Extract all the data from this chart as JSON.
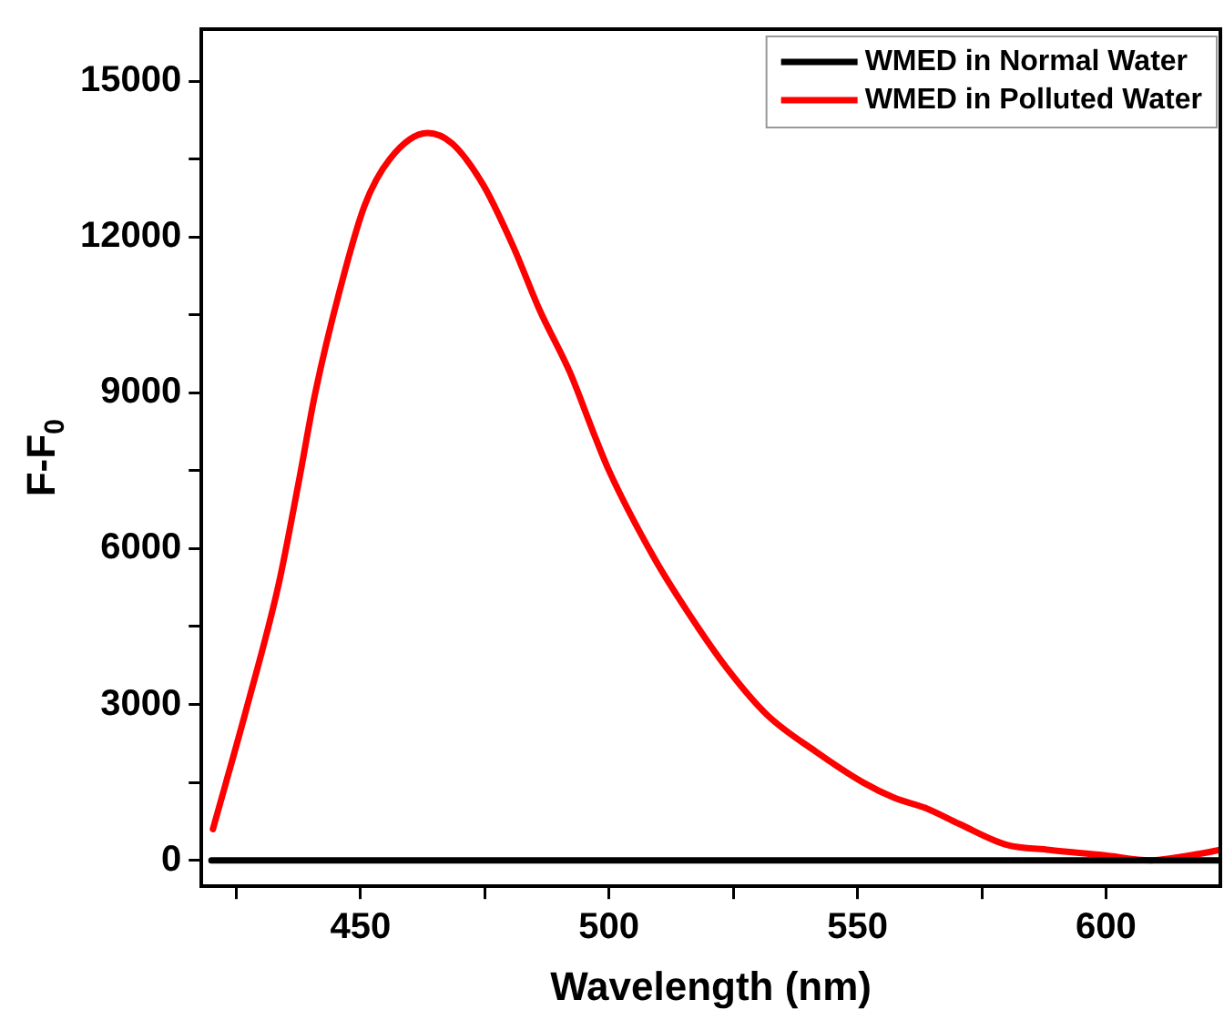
{
  "chart_data": {
    "type": "line",
    "xlabel": "Wavelength (nm)",
    "ylabel": "F-F$_{0}$",
    "xlim": [
      418,
      623
    ],
    "xticks": [
      {
        "value": 425,
        "label": null
      },
      450,
      {
        "value": 475,
        "label": null
      },
      500,
      {
        "value": 525,
        "label": null
      },
      550,
      {
        "value": 575,
        "label": null
      },
      600
    ],
    "ylim": [
      -500,
      16000
    ],
    "yticks": [
      0,
      {
        "value": 1500,
        "label": null
      },
      3000,
      {
        "value": 4500,
        "label": null
      },
      6000,
      {
        "value": 7500,
        "label": null
      },
      9000,
      {
        "value": 10500,
        "label": null
      },
      12000,
      {
        "value": 13500,
        "label": null
      },
      15000
    ],
    "legend": "top right",
    "grid": false,
    "marker": "none",
    "line_style": "solid",
    "series": [
      {
        "name": "WMED in Normal Water",
        "color": "#000000",
        "x": [
          420,
          623
        ],
        "values": [
          0,
          0
        ]
      },
      {
        "name": "WMED in Polluted Water",
        "color": "#ff0000",
        "x": [
          420.3,
          427,
          433.5,
          437.6,
          440.9,
          445.9,
          450.8,
          455.9,
          463.5,
          468.4,
          474.7,
          480.8,
          486,
          492.1,
          497,
          500,
          509.2,
          515.7,
          523.7,
          531.8,
          541.5,
          551.1,
          557.5,
          563.9,
          570.5,
          580,
          588.6,
          599.5,
          609,
          617.2,
          623
        ],
        "values": [
          600,
          2900,
          5300,
          7300,
          9000,
          11000,
          12600,
          13500,
          14000,
          13800,
          13000,
          11800,
          10600,
          9400,
          8200,
          7500,
          5800,
          4800,
          3700,
          2800,
          2100,
          1500,
          1200,
          1000,
          700,
          300,
          200,
          100,
          0,
          100,
          200
        ]
      }
    ]
  }
}
